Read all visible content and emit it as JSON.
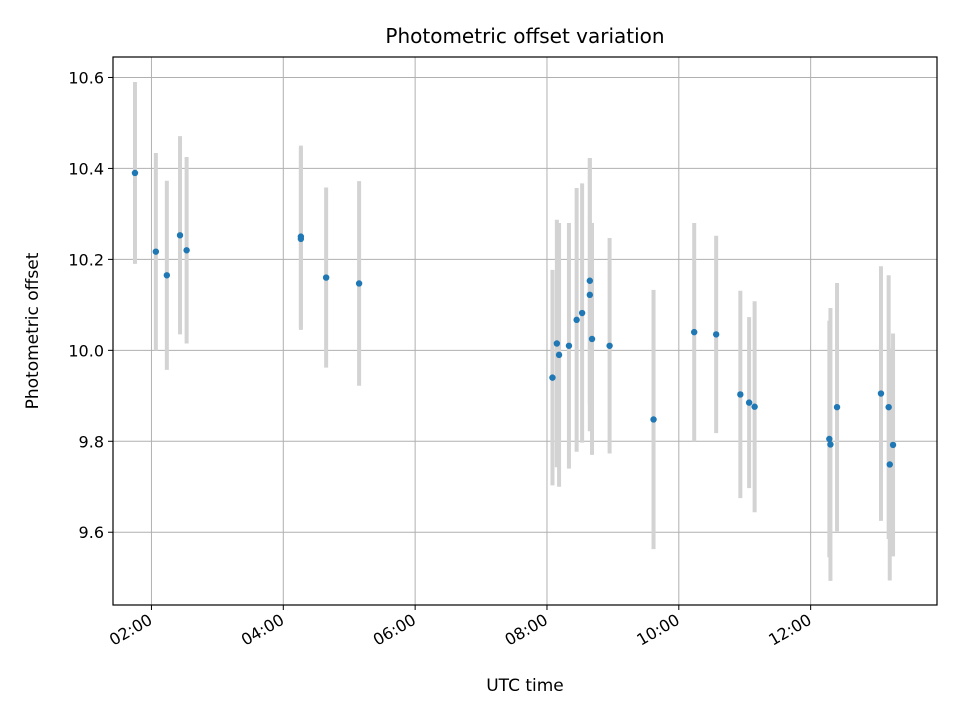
{
  "chart_data": {
    "type": "scatter",
    "title": "Photometric offset variation",
    "xlabel": "UTC time",
    "ylabel": "Photometric offset",
    "x_unit": "hours UTC",
    "xlim": [
      "01:25",
      "13:55"
    ],
    "ylim": [
      9.44,
      10.645
    ],
    "x_ticks": [
      "02:00",
      "04:00",
      "06:00",
      "08:00",
      "10:00",
      "12:00"
    ],
    "y_ticks": [
      9.6,
      9.8,
      10.0,
      10.2,
      10.4,
      10.6
    ],
    "grid": true,
    "marker_color": "#1f77b4",
    "errorbar_color": "#d3d3d3",
    "points": [
      {
        "x": "01:45",
        "y": 10.39,
        "yerr": 0.2
      },
      {
        "x": "02:04",
        "y": 10.217,
        "yerr": 0.217
      },
      {
        "x": "02:14",
        "y": 10.165,
        "yerr": 0.208
      },
      {
        "x": "02:26",
        "y": 10.253,
        "yerr": 0.218
      },
      {
        "x": "02:32",
        "y": 10.22,
        "yerr": 0.205
      },
      {
        "x": "04:16",
        "y": 10.25,
        "yerr": 0.2
      },
      {
        "x": "04:16",
        "y": 10.245,
        "yerr": 0.2
      },
      {
        "x": "04:39",
        "y": 10.16,
        "yerr": 0.198
      },
      {
        "x": "05:09",
        "y": 10.147,
        "yerr": 0.225
      },
      {
        "x": "08:05",
        "y": 9.94,
        "yerr": 0.237
      },
      {
        "x": "08:09",
        "y": 10.015,
        "yerr": 0.272
      },
      {
        "x": "08:11",
        "y": 9.99,
        "yerr": 0.29
      },
      {
        "x": "08:20",
        "y": 10.01,
        "yerr": 0.27
      },
      {
        "x": "08:27",
        "y": 10.067,
        "yerr": 0.29
      },
      {
        "x": "08:32",
        "y": 10.082,
        "yerr": 0.285
      },
      {
        "x": "08:39",
        "y": 10.153,
        "yerr": 0.27
      },
      {
        "x": "08:39",
        "y": 10.122,
        "yerr": 0.3
      },
      {
        "x": "08:41",
        "y": 10.025,
        "yerr": 0.255
      },
      {
        "x": "08:57",
        "y": 10.01,
        "yerr": 0.237
      },
      {
        "x": "09:37",
        "y": 9.848,
        "yerr": 0.285
      },
      {
        "x": "10:14",
        "y": 10.04,
        "yerr": 0.24
      },
      {
        "x": "10:34",
        "y": 10.035,
        "yerr": 0.217
      },
      {
        "x": "10:56",
        "y": 9.903,
        "yerr": 0.228
      },
      {
        "x": "11:04",
        "y": 9.885,
        "yerr": 0.188
      },
      {
        "x": "11:09",
        "y": 9.876,
        "yerr": 0.232
      },
      {
        "x": "12:17",
        "y": 9.805,
        "yerr": 0.26
      },
      {
        "x": "12:18",
        "y": 9.793,
        "yerr": 0.3
      },
      {
        "x": "12:24",
        "y": 9.875,
        "yerr": 0.273
      },
      {
        "x": "13:04",
        "y": 9.905,
        "yerr": 0.28
      },
      {
        "x": "13:11",
        "y": 9.875,
        "yerr": 0.29
      },
      {
        "x": "13:12",
        "y": 9.749,
        "yerr": 0.255
      },
      {
        "x": "13:15",
        "y": 9.792,
        "yerr": 0.245
      }
    ]
  }
}
